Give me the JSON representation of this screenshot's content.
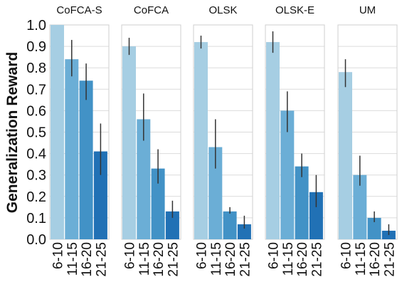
{
  "chart_data": {
    "type": "bar",
    "ylabel": "Generalization Reward",
    "ylim": [
      0.0,
      1.0
    ],
    "yticks": [
      "0.0",
      "0.1",
      "0.2",
      "0.3",
      "0.4",
      "0.5",
      "0.6",
      "0.7",
      "0.8",
      "0.9",
      "1.0"
    ],
    "grid": true,
    "categories": [
      "6-10",
      "11-15",
      "16-20",
      "21-25"
    ],
    "colors": [
      "#a6cee3",
      "#6baed6",
      "#4292c6",
      "#2171b5"
    ],
    "panels": [
      {
        "title": "CoFCA-S",
        "values": [
          1.0,
          0.84,
          0.74,
          0.41
        ],
        "err_low": [
          1.0,
          0.76,
          0.65,
          0.3
        ],
        "err_high": [
          1.0,
          0.93,
          0.82,
          0.54
        ]
      },
      {
        "title": "CoFCA",
        "values": [
          0.9,
          0.56,
          0.33,
          0.13
        ],
        "err_low": [
          0.86,
          0.46,
          0.26,
          0.1
        ],
        "err_high": [
          0.94,
          0.68,
          0.42,
          0.18
        ]
      },
      {
        "title": "OLSK",
        "values": [
          0.92,
          0.43,
          0.13,
          0.07
        ],
        "err_low": [
          0.89,
          0.33,
          0.12,
          0.05
        ],
        "err_high": [
          0.95,
          0.56,
          0.15,
          0.11
        ]
      },
      {
        "title": "OLSK-E",
        "values": [
          0.92,
          0.6,
          0.34,
          0.22
        ],
        "err_low": [
          0.87,
          0.5,
          0.29,
          0.15
        ],
        "err_high": [
          0.97,
          0.69,
          0.4,
          0.3
        ]
      },
      {
        "title": "UM",
        "values": [
          0.78,
          0.3,
          0.1,
          0.04
        ],
        "err_low": [
          0.71,
          0.25,
          0.08,
          0.02
        ],
        "err_high": [
          0.84,
          0.39,
          0.13,
          0.07
        ]
      }
    ]
  }
}
